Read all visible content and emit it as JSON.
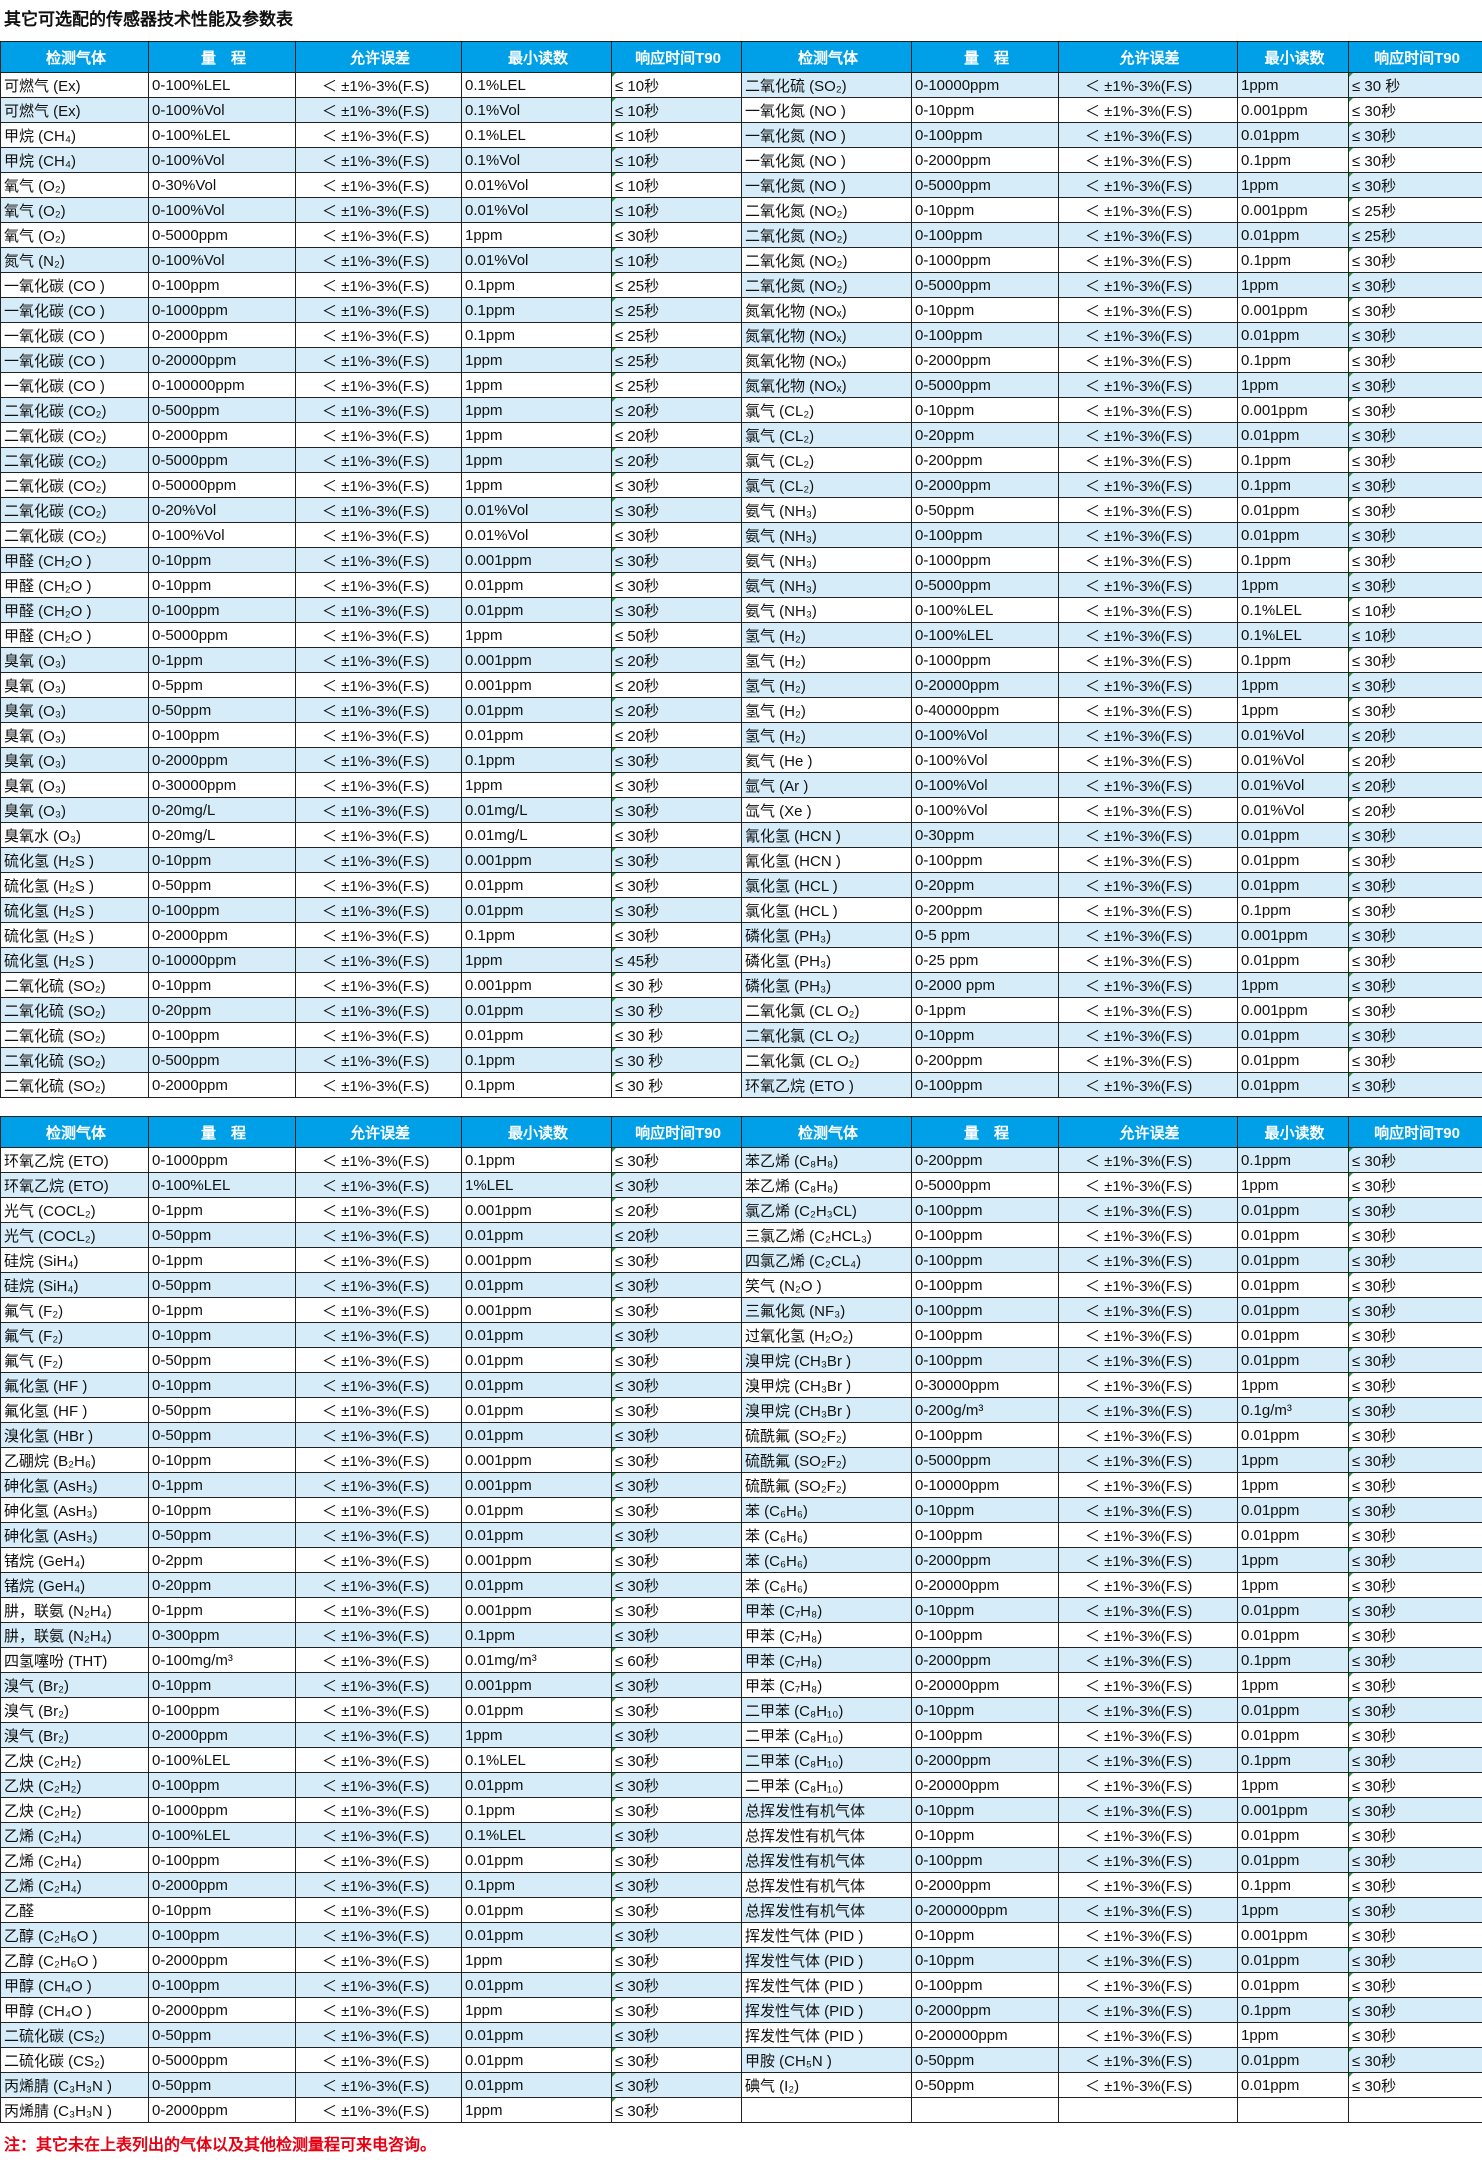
{
  "title": "其它可选配的传感器技术性能及参数表",
  "headers": [
    "检测气体",
    "量　程",
    "允许误差",
    "最小读数",
    "响应时间T90"
  ],
  "error_text": "＜ ±1%-3%(F.S)",
  "colors": {
    "header_bg": "#00a0e9",
    "stripe": "#d6edf9",
    "note": "#e60012"
  },
  "tables": [
    {
      "left": [
        [
          "可燃气 (Ex)",
          "0-100%LEL",
          "0.1%LEL",
          "≤ 10秒"
        ],
        [
          "可燃气 (Ex)",
          "0-100%Vol",
          "0.1%Vol",
          "≤ 10秒"
        ],
        [
          "甲烷 (CH₄)",
          "0-100%LEL",
          "0.1%LEL",
          "≤ 10秒"
        ],
        [
          "甲烷 (CH₄)",
          "0-100%Vol",
          "0.1%Vol",
          "≤ 10秒"
        ],
        [
          "氧气 (O₂)",
          "0-30%Vol",
          "0.01%Vol",
          "≤ 10秒"
        ],
        [
          "氧气 (O₂)",
          "0-100%Vol",
          "0.01%Vol",
          "≤ 10秒"
        ],
        [
          "氧气 (O₂)",
          "0-5000ppm",
          "1ppm",
          "≤ 30秒"
        ],
        [
          "氮气 (N₂)",
          "0-100%Vol",
          "0.01%Vol",
          "≤ 10秒"
        ],
        [
          "一氧化碳 (CO )",
          "0-100ppm",
          "0.1ppm",
          "≤ 25秒"
        ],
        [
          "一氧化碳 (CO )",
          "0-1000ppm",
          "0.1ppm",
          "≤ 25秒"
        ],
        [
          "一氧化碳 (CO )",
          "0-2000ppm",
          "0.1ppm",
          "≤ 25秒"
        ],
        [
          "一氧化碳 (CO )",
          "0-20000ppm",
          "1ppm",
          "≤ 25秒"
        ],
        [
          "一氧化碳 (CO )",
          "0-100000ppm",
          "1ppm",
          "≤ 25秒"
        ],
        [
          "二氧化碳 (CO₂)",
          "0-500ppm",
          "1ppm",
          "≤ 20秒"
        ],
        [
          "二氧化碳 (CO₂)",
          "0-2000ppm",
          "1ppm",
          "≤ 20秒"
        ],
        [
          "二氧化碳 (CO₂)",
          "0-5000ppm",
          "1ppm",
          "≤ 20秒"
        ],
        [
          "二氧化碳 (CO₂)",
          "0-50000ppm",
          "1ppm",
          "≤ 30秒"
        ],
        [
          "二氧化碳 (CO₂)",
          "0-20%Vol",
          "0.01%Vol",
          "≤ 30秒"
        ],
        [
          "二氧化碳 (CO₂)",
          "0-100%Vol",
          "0.01%Vol",
          "≤ 30秒"
        ],
        [
          "甲醛 (CH₂O )",
          "0-10ppm",
          "0.001ppm",
          "≤ 30秒"
        ],
        [
          "甲醛 (CH₂O )",
          "0-10ppm",
          "0.01ppm",
          "≤ 30秒"
        ],
        [
          "甲醛 (CH₂O )",
          "0-100ppm",
          "0.01ppm",
          "≤ 30秒"
        ],
        [
          "甲醛 (CH₂O )",
          "0-5000ppm",
          "1ppm",
          "≤ 50秒"
        ],
        [
          "臭氧 (O₃)",
          "0-1ppm",
          "0.001ppm",
          "≤ 20秒"
        ],
        [
          "臭氧 (O₃)",
          "0-5ppm",
          "0.001ppm",
          "≤ 20秒"
        ],
        [
          "臭氧 (O₃)",
          "0-50ppm",
          "0.01ppm",
          "≤ 20秒"
        ],
        [
          "臭氧 (O₃)",
          "0-100ppm",
          "0.01ppm",
          "≤ 20秒"
        ],
        [
          "臭氧 (O₃)",
          "0-2000ppm",
          "0.1ppm",
          "≤ 30秒"
        ],
        [
          "臭氧 (O₃)",
          "0-30000ppm",
          "1ppm",
          "≤ 30秒"
        ],
        [
          "臭氧 (O₃)",
          "0-20mg/L",
          "0.01mg/L",
          "≤ 30秒"
        ],
        [
          "臭氧水 (O₃)",
          "0-20mg/L",
          "0.01mg/L",
          "≤ 30秒"
        ],
        [
          "硫化氢 (H₂S )",
          "0-10ppm",
          "0.001ppm",
          "≤ 30秒"
        ],
        [
          "硫化氢 (H₂S )",
          "0-50ppm",
          "0.01ppm",
          "≤ 30秒"
        ],
        [
          "硫化氢 (H₂S )",
          "0-100ppm",
          "0.01ppm",
          "≤ 30秒"
        ],
        [
          "硫化氢 (H₂S )",
          "0-2000ppm",
          "0.1ppm",
          "≤ 30秒"
        ],
        [
          "硫化氢 (H₂S )",
          "0-10000ppm",
          "1ppm",
          "≤ 45秒"
        ],
        [
          "二氧化硫 (SO₂)",
          "0-10ppm",
          "0.001ppm",
          "≤ 30 秒"
        ],
        [
          "二氧化硫 (SO₂)",
          "0-20ppm",
          "0.01ppm",
          "≤ 30 秒"
        ],
        [
          "二氧化硫 (SO₂)",
          "0-100ppm",
          "0.01ppm",
          "≤ 30 秒"
        ],
        [
          "二氧化硫 (SO₂)",
          "0-500ppm",
          "0.1ppm",
          "≤ 30 秒"
        ],
        [
          "二氧化硫 (SO₂)",
          "0-2000ppm",
          "0.1ppm",
          "≤ 30 秒"
        ]
      ],
      "right": [
        [
          "二氧化硫 (SO₂)",
          "0-10000ppm",
          "1ppm",
          "≤ 30 秒"
        ],
        [
          "一氧化氮 (NO )",
          "0-10ppm",
          "0.001ppm",
          "≤ 30秒"
        ],
        [
          "一氧化氮 (NO )",
          "0-100ppm",
          "0.01ppm",
          "≤ 30秒"
        ],
        [
          "一氧化氮 (NO )",
          "0-2000ppm",
          "0.1ppm",
          "≤ 30秒"
        ],
        [
          "一氧化氮 (NO )",
          "0-5000ppm",
          "1ppm",
          "≤ 30秒"
        ],
        [
          "二氧化氮 (NO₂)",
          "0-10ppm",
          "0.001ppm",
          "≤ 25秒"
        ],
        [
          "二氧化氮 (NO₂)",
          "0-100ppm",
          "0.01ppm",
          "≤ 25秒"
        ],
        [
          "二氧化氮 (NO₂)",
          "0-1000ppm",
          "0.1ppm",
          "≤ 30秒"
        ],
        [
          "二氧化氮 (NO₂)",
          "0-5000ppm",
          "1ppm",
          "≤ 30秒"
        ],
        [
          "氮氧化物 (NOₓ)",
          "0-10ppm",
          "0.001ppm",
          "≤ 30秒"
        ],
        [
          "氮氧化物 (NOₓ)",
          "0-100ppm",
          "0.01ppm",
          "≤ 30秒"
        ],
        [
          "氮氧化物 (NOₓ)",
          "0-2000ppm",
          "0.1ppm",
          "≤ 30秒"
        ],
        [
          "氮氧化物 (NOₓ)",
          "0-5000ppm",
          "1ppm",
          "≤ 30秒"
        ],
        [
          "氯气 (CL₂)",
          "0-10ppm",
          "0.001ppm",
          "≤ 30秒"
        ],
        [
          "氯气 (CL₂)",
          "0-20ppm",
          "0.01ppm",
          "≤ 30秒"
        ],
        [
          "氯气 (CL₂)",
          "0-200ppm",
          "0.1ppm",
          "≤ 30秒"
        ],
        [
          "氯气 (CL₂)",
          "0-2000ppm",
          "0.1ppm",
          "≤ 30秒"
        ],
        [
          "氨气 (NH₃)",
          "0-50ppm",
          "0.01ppm",
          "≤ 30秒"
        ],
        [
          "氨气 (NH₃)",
          "0-100ppm",
          "0.01ppm",
          "≤ 30秒"
        ],
        [
          "氨气 (NH₃)",
          "0-1000ppm",
          "0.1ppm",
          "≤ 30秒"
        ],
        [
          "氨气 (NH₃)",
          "0-5000ppm",
          "1ppm",
          "≤ 30秒"
        ],
        [
          "氨气 (NH₃)",
          "0-100%LEL",
          "0.1%LEL",
          "≤ 10秒"
        ],
        [
          "氢气 (H₂)",
          "0-100%LEL",
          "0.1%LEL",
          "≤ 10秒"
        ],
        [
          "氢气 (H₂)",
          "0-1000ppm",
          "0.1ppm",
          "≤ 30秒"
        ],
        [
          "氢气 (H₂)",
          "0-20000ppm",
          "1ppm",
          "≤ 30秒"
        ],
        [
          "氢气 (H₂)",
          "0-40000ppm",
          "1ppm",
          "≤ 30秒"
        ],
        [
          "氢气 (H₂)",
          "0-100%Vol",
          "0.01%Vol",
          "≤ 20秒"
        ],
        [
          "氦气 (He )",
          "0-100%Vol",
          "0.01%Vol",
          "≤ 20秒"
        ],
        [
          "氩气 (Ar )",
          "0-100%Vol",
          "0.01%Vol",
          "≤ 20秒"
        ],
        [
          "氙气 (Xe )",
          "0-100%Vol",
          "0.01%Vol",
          "≤ 20秒"
        ],
        [
          "氰化氢 (HCN )",
          "0-30ppm",
          "0.01ppm",
          "≤ 30秒"
        ],
        [
          "氰化氢 (HCN )",
          "0-100ppm",
          "0.01ppm",
          "≤ 30秒"
        ],
        [
          "氯化氢 (HCL )",
          "0-20ppm",
          "0.01ppm",
          "≤ 30秒"
        ],
        [
          "氯化氢 (HCL )",
          "0-200ppm",
          "0.1ppm",
          "≤ 30秒"
        ],
        [
          "磷化氢 (PH₃)",
          "0-5 ppm",
          "0.001ppm",
          "≤ 30秒"
        ],
        [
          "磷化氢 (PH₃)",
          "0-25 ppm",
          "0.01ppm",
          "≤ 30秒"
        ],
        [
          "磷化氢 (PH₃)",
          "0-2000 ppm",
          "1ppm",
          "≤ 30秒"
        ],
        [
          "二氧化氯 (CL O₂)",
          "0-1ppm",
          "0.001ppm",
          "≤ 30秒"
        ],
        [
          "二氧化氯 (CL O₂)",
          "0-10ppm",
          "0.01ppm",
          "≤ 30秒"
        ],
        [
          "二氧化氯 (CL O₂)",
          "0-200ppm",
          "0.01ppm",
          "≤ 30秒"
        ],
        [
          "环氧乙烷 (ETO )",
          "0-100ppm",
          "0.01ppm",
          "≤ 30秒"
        ]
      ]
    },
    {
      "left": [
        [
          "环氧乙烷 (ETO)",
          "0-1000ppm",
          "0.1ppm",
          "≤ 30秒"
        ],
        [
          "环氧乙烷 (ETO)",
          "0-100%LEL",
          "1%LEL",
          "≤ 30秒"
        ],
        [
          "光气 (COCL₂)",
          "0-1ppm",
          "0.001ppm",
          "≤ 20秒"
        ],
        [
          "光气 (COCL₂)",
          "0-50ppm",
          "0.01ppm",
          "≤ 20秒"
        ],
        [
          "硅烷 (SiH₄)",
          "0-1ppm",
          "0.001ppm",
          "≤ 30秒"
        ],
        [
          "硅烷 (SiH₄)",
          "0-50ppm",
          "0.01ppm",
          "≤ 30秒"
        ],
        [
          "氟气 (F₂)",
          "0-1ppm",
          "0.001ppm",
          "≤ 30秒"
        ],
        [
          "氟气 (F₂)",
          "0-10ppm",
          "0.01ppm",
          "≤ 30秒"
        ],
        [
          "氟气 (F₂)",
          "0-50ppm",
          "0.01ppm",
          "≤ 30秒"
        ],
        [
          "氟化氢 (HF )",
          "0-10ppm",
          "0.01ppm",
          "≤ 30秒"
        ],
        [
          "氟化氢 (HF )",
          "0-50ppm",
          "0.01ppm",
          "≤ 30秒"
        ],
        [
          "溴化氢 (HBr )",
          "0-50ppm",
          "0.01ppm",
          "≤ 30秒"
        ],
        [
          "乙硼烷 (B₂H₆)",
          "0-10ppm",
          "0.001ppm",
          "≤ 30秒"
        ],
        [
          "砷化氢 (AsH₃)",
          "0-1ppm",
          "0.001ppm",
          "≤ 30秒"
        ],
        [
          "砷化氢 (AsH₃)",
          "0-10ppm",
          "0.01ppm",
          "≤ 30秒"
        ],
        [
          "砷化氢 (AsH₃)",
          "0-50ppm",
          "0.01ppm",
          "≤ 30秒"
        ],
        [
          "锗烷 (GeH₄)",
          "0-2ppm",
          "0.001ppm",
          "≤ 30秒"
        ],
        [
          "锗烷 (GeH₄)",
          "0-20ppm",
          "0.01ppm",
          "≤ 30秒"
        ],
        [
          "肼，联氨 (N₂H₄)",
          "0-1ppm",
          "0.001ppm",
          "≤ 30秒"
        ],
        [
          "肼，联氨 (N₂H₄)",
          "0-300ppm",
          "0.1ppm",
          "≤ 30秒"
        ],
        [
          "四氢噻吩 (THT)",
          "0-100mg/m³",
          "0.01mg/m³",
          "≤ 60秒"
        ],
        [
          "溴气 (Br₂)",
          "0-10ppm",
          "0.001ppm",
          "≤ 30秒"
        ],
        [
          "溴气 (Br₂)",
          "0-100ppm",
          "0.01ppm",
          "≤ 30秒"
        ],
        [
          "溴气 (Br₂)",
          "0-2000ppm",
          "1ppm",
          "≤ 30秒"
        ],
        [
          "乙炔 (C₂H₂)",
          "0-100%LEL",
          "0.1%LEL",
          "≤ 30秒"
        ],
        [
          "乙炔 (C₂H₂)",
          "0-100ppm",
          "0.01ppm",
          "≤ 30秒"
        ],
        [
          "乙炔 (C₂H₂)",
          "0-1000ppm",
          "0.1ppm",
          "≤ 30秒"
        ],
        [
          "乙烯 (C₂H₄)",
          "0-100%LEL",
          "0.1%LEL",
          "≤ 30秒"
        ],
        [
          "乙烯 (C₂H₄)",
          "0-100ppm",
          "0.01ppm",
          "≤ 30秒"
        ],
        [
          "乙烯 (C₂H₄)",
          "0-2000ppm",
          "0.1ppm",
          "≤ 30秒"
        ],
        [
          "乙醛",
          "0-10ppm",
          "0.01ppm",
          "≤ 30秒"
        ],
        [
          "乙醇 (C₂H₆O )",
          "0-100ppm",
          "0.01ppm",
          "≤ 30秒"
        ],
        [
          "乙醇 (C₂H₆O )",
          "0-2000ppm",
          "1ppm",
          "≤ 30秒"
        ],
        [
          "甲醇 (CH₄O )",
          "0-100ppm",
          "0.01ppm",
          "≤ 30秒"
        ],
        [
          "甲醇 (CH₄O )",
          "0-2000ppm",
          "1ppm",
          "≤ 30秒"
        ],
        [
          "二硫化碳 (CS₂)",
          "0-50ppm",
          "0.01ppm",
          "≤ 30秒"
        ],
        [
          "二硫化碳 (CS₂)",
          "0-5000ppm",
          "0.01ppm",
          "≤ 30秒"
        ],
        [
          "丙烯腈 (C₃H₃N )",
          "0-50ppm",
          "0.01ppm",
          "≤ 30秒"
        ],
        [
          "丙烯腈 (C₃H₃N )",
          "0-2000ppm",
          "1ppm",
          "≤ 30秒"
        ]
      ],
      "right": [
        [
          "苯乙烯 (C₈H₈)",
          "0-200ppm",
          "0.1ppm",
          "≤ 30秒"
        ],
        [
          "苯乙烯 (C₈H₈)",
          "0-5000ppm",
          "1ppm",
          "≤ 30秒"
        ],
        [
          "氯乙烯 (C₂H₃CL)",
          "0-100ppm",
          "0.01ppm",
          "≤ 30秒"
        ],
        [
          "三氯乙烯 (C₂HCL₃)",
          "0-100ppm",
          "0.01ppm",
          "≤ 30秒"
        ],
        [
          "四氯乙烯 (C₂CL₄)",
          "0-100ppm",
          "0.01ppm",
          "≤ 30秒"
        ],
        [
          "笑气 (N₂O )",
          "0-100ppm",
          "0.01ppm",
          "≤ 30秒"
        ],
        [
          "三氟化氮 (NF₃)",
          "0-100ppm",
          "0.01ppm",
          "≤ 30秒"
        ],
        [
          "过氧化氢 (H₂O₂)",
          "0-100ppm",
          "0.01ppm",
          "≤ 30秒"
        ],
        [
          "溴甲烷 (CH₃Br )",
          "0-100ppm",
          "0.01ppm",
          "≤ 30秒"
        ],
        [
          "溴甲烷 (CH₃Br )",
          "0-30000ppm",
          "1ppm",
          "≤ 30秒"
        ],
        [
          "溴甲烷 (CH₃Br )",
          "0-200g/m³",
          "0.1g/m³",
          "≤ 30秒"
        ],
        [
          "硫酰氟 (SO₂F₂)",
          "0-100ppm",
          "0.01ppm",
          "≤ 30秒"
        ],
        [
          "硫酰氟 (SO₂F₂)",
          "0-5000ppm",
          "1ppm",
          "≤ 30秒"
        ],
        [
          "硫酰氟 (SO₂F₂)",
          "0-10000ppm",
          "1ppm",
          "≤ 30秒"
        ],
        [
          "苯 (C₆H₆)",
          "0-10ppm",
          "0.01ppm",
          "≤ 30秒"
        ],
        [
          "苯 (C₆H₆)",
          "0-100ppm",
          "0.01ppm",
          "≤ 30秒"
        ],
        [
          "苯 (C₆H₆)",
          "0-2000ppm",
          "1ppm",
          "≤ 30秒"
        ],
        [
          "苯 (C₆H₆)",
          "0-20000ppm",
          "1ppm",
          "≤ 30秒"
        ],
        [
          "甲苯 (C₇H₈)",
          "0-10ppm",
          "0.01ppm",
          "≤ 30秒"
        ],
        [
          "甲苯 (C₇H₈)",
          "0-100ppm",
          "0.01ppm",
          "≤ 30秒"
        ],
        [
          "甲苯 (C₇H₈)",
          "0-2000ppm",
          "0.1ppm",
          "≤ 30秒"
        ],
        [
          "甲苯 (C₇H₈)",
          "0-20000ppm",
          "1ppm",
          "≤ 30秒"
        ],
        [
          "二甲苯 (C₈H₁₀)",
          "0-10ppm",
          "0.01ppm",
          "≤ 30秒"
        ],
        [
          "二甲苯 (C₈H₁₀)",
          "0-100ppm",
          "0.01ppm",
          "≤ 30秒"
        ],
        [
          "二甲苯 (C₈H₁₀)",
          "0-2000ppm",
          "0.1ppm",
          "≤ 30秒"
        ],
        [
          "二甲苯 (C₈H₁₀)",
          "0-20000ppm",
          "1ppm",
          "≤ 30秒"
        ],
        [
          "总挥发性有机气体",
          "0-10ppm",
          "0.001ppm",
          "≤ 30秒"
        ],
        [
          "总挥发性有机气体",
          "0-10ppm",
          "0.01ppm",
          "≤ 30秒"
        ],
        [
          "总挥发性有机气体",
          "0-100ppm",
          "0.01ppm",
          "≤ 30秒"
        ],
        [
          "总挥发性有机气体",
          "0-2000ppm",
          "0.1ppm",
          "≤ 30秒"
        ],
        [
          "总挥发性有机气体",
          "0-200000ppm",
          "1ppm",
          "≤ 30秒"
        ],
        [
          "挥发性气体 (PID )",
          "0-10ppm",
          "0.001ppm",
          "≤ 30秒"
        ],
        [
          "挥发性气体 (PID )",
          "0-10ppm",
          "0.01ppm",
          "≤ 30秒"
        ],
        [
          "挥发性气体 (PID )",
          "0-100ppm",
          "0.01ppm",
          "≤ 30秒"
        ],
        [
          "挥发性气体 (PID )",
          "0-2000ppm",
          "0.1ppm",
          "≤ 30秒"
        ],
        [
          "挥发性气体 (PID )",
          "0-200000ppm",
          "1ppm",
          "≤ 30秒"
        ],
        [
          "甲胺 (CH₅N )",
          "0-50ppm",
          "0.01ppm",
          "≤ 30秒"
        ],
        [
          "碘气 (I₂)",
          "0-50ppm",
          "0.01ppm",
          "≤ 30秒"
        ]
      ]
    }
  ],
  "note": "注：其它未在上表列出的气体以及其他检测量程可来电咨询。"
}
